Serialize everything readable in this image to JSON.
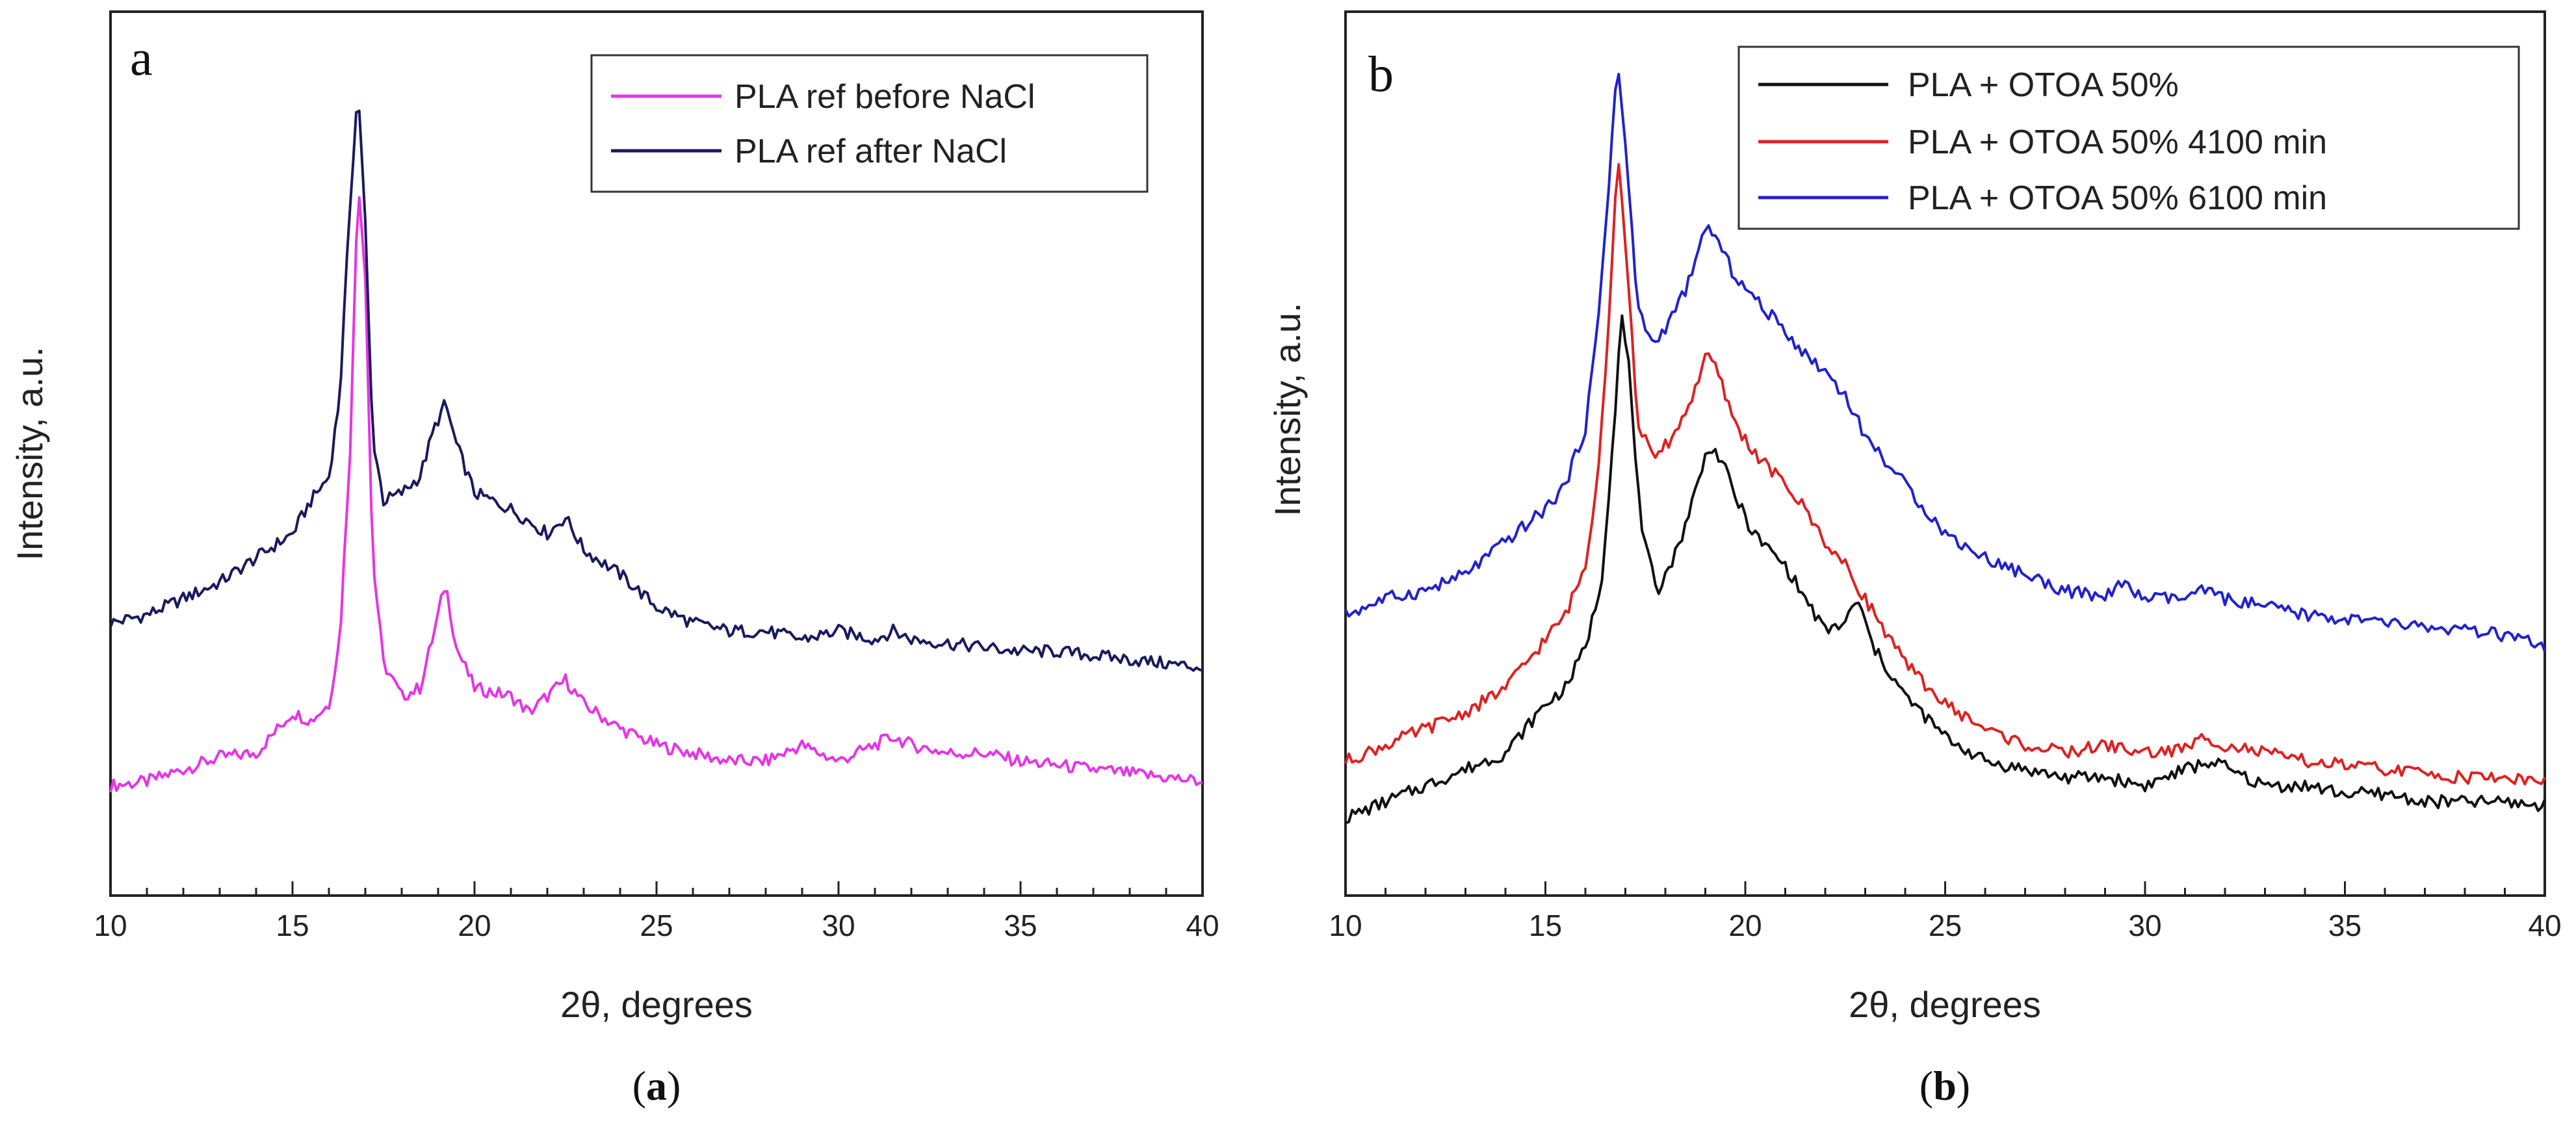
{
  "chart_data": [
    {
      "type": "line",
      "panel_letter": "a",
      "caption": {
        "open": "(",
        "letter": "a",
        "close": ")"
      },
      "xlabel": "2θ, degrees",
      "ylabel": "Intensity, a.u.",
      "xlim": [
        10,
        40
      ],
      "ylim": [
        0,
        100
      ],
      "x_ticks": [
        10,
        15,
        20,
        25,
        30,
        35,
        40
      ],
      "x_tick_labels": [
        "10",
        "15",
        "20",
        "25",
        "30",
        "35",
        "40"
      ],
      "legend_position": "top-right",
      "series": [
        {
          "name": "PLA ref before NaCl",
          "color": "#e535e5",
          "x": [
            10,
            11,
            12,
            13,
            14,
            15,
            15.5,
            16,
            16.3,
            16.6,
            16.8,
            17.0,
            17.2,
            17.5,
            18,
            18.5,
            18.9,
            19.2,
            19.5,
            20,
            21,
            21.5,
            22,
            22.5,
            23,
            24,
            25,
            26,
            27,
            28,
            29,
            29.2,
            30,
            31,
            31.5,
            32,
            33,
            34,
            35,
            36,
            37,
            38,
            39,
            40
          ],
          "values": [
            7,
            7.5,
            9,
            10.5,
            11,
            16,
            15,
            17,
            25,
            50,
            82,
            70,
            35,
            22,
            18,
            19,
            26,
            32,
            24,
            19,
            18,
            16,
            18,
            20,
            17,
            14,
            12,
            11,
            10,
            10,
            12,
            11.5,
            10,
            12,
            13,
            12,
            11,
            11,
            10,
            9.5,
            9,
            8.5,
            8,
            7.5
          ]
        },
        {
          "name": "PLA ref after NaCl",
          "color": "#1a1a5e",
          "x": [
            10,
            11,
            12,
            13,
            14,
            15,
            15.5,
            16,
            16.3,
            16.6,
            16.8,
            17.0,
            17.2,
            17.5,
            18,
            18.5,
            18.9,
            19.2,
            19.5,
            20,
            21,
            22,
            22.5,
            23,
            24,
            25,
            26,
            27,
            28,
            29,
            30,
            31,
            31.5,
            32,
            33,
            34,
            35,
            36,
            37,
            38,
            39,
            40
          ],
          "values": [
            27,
            28,
            30,
            32,
            35,
            38,
            42,
            45,
            55,
            80,
            93,
            76,
            50,
            42,
            43,
            45,
            51,
            54,
            49,
            43,
            41,
            38,
            40,
            36,
            33,
            29,
            27,
            26,
            26,
            25,
            26,
            25,
            26,
            25,
            24.5,
            24,
            23.5,
            23.5,
            23,
            22.5,
            22,
            21.5
          ]
        }
      ]
    },
    {
      "type": "line",
      "panel_letter": "b",
      "caption": {
        "open": "(",
        "letter": "b",
        "close": ")"
      },
      "xlabel": "2θ, degrees",
      "ylabel": "Intensity, a.u.",
      "xlim": [
        10,
        40
      ],
      "ylim": [
        0,
        100
      ],
      "x_ticks": [
        10,
        15,
        20,
        25,
        30,
        35,
        40
      ],
      "x_tick_labels": [
        "10",
        "15",
        "20",
        "25",
        "30",
        "35",
        "40"
      ],
      "legend_position": "top-right",
      "series": [
        {
          "name": "PLA + OTOA 50%",
          "color": "#111111",
          "x": [
            10,
            11,
            12,
            13,
            14,
            15,
            15.5,
            16,
            16.4,
            16.7,
            16.9,
            17.1,
            17.4,
            17.8,
            18.3,
            18.8,
            19.1,
            19.4,
            19.8,
            20.2,
            21,
            21.5,
            22,
            22.5,
            22.8,
            23.2,
            24,
            25,
            26,
            27,
            28,
            29,
            30,
            31,
            31.7,
            32.5,
            33,
            34,
            35,
            36,
            37,
            38,
            39,
            40
          ],
          "values": [
            3,
            5,
            7,
            9,
            11,
            17,
            19,
            24,
            32,
            50,
            65,
            58,
            38,
            31,
            36,
            44,
            49,
            47,
            42,
            38,
            34,
            30,
            26,
            27,
            30,
            24,
            18,
            13,
            10,
            9,
            8,
            8,
            7,
            9,
            10,
            8,
            7,
            7,
            6,
            6,
            5,
            5,
            5,
            4.5
          ]
        },
        {
          "name": "PLA + OTOA 50% 4100 min",
          "color": "#dd2222",
          "x": [
            10,
            11,
            12,
            13,
            14,
            15,
            15.5,
            16,
            16.3,
            16.6,
            16.8,
            17.0,
            17.3,
            17.7,
            18.2,
            18.7,
            19.0,
            19.3,
            19.7,
            20.2,
            21,
            21.5,
            22,
            22.5,
            23,
            24,
            25,
            26,
            27,
            28,
            29,
            30,
            31,
            31.5,
            32,
            33,
            34,
            35,
            36,
            37,
            38,
            39,
            40
          ],
          "values": [
            10,
            12,
            14,
            16,
            19,
            25,
            28,
            34,
            45,
            65,
            85,
            74,
            52,
            47,
            50,
            55,
            60,
            58,
            52,
            48,
            44,
            41,
            37,
            34,
            30,
            22,
            17,
            14,
            12,
            11,
            12,
            11,
            11.5,
            13,
            12,
            11,
            10,
            9.5,
            9,
            8.5,
            8,
            8,
            7.5
          ]
        },
        {
          "name": "PLA + OTOA 50% 6100 min",
          "color": "#2222cc",
          "x": [
            10,
            11,
            12,
            13,
            14,
            15,
            15.5,
            16,
            16.3,
            16.6,
            16.8,
            17.0,
            17.3,
            17.7,
            18.2,
            18.7,
            19.0,
            19.3,
            19.7,
            20.2,
            21,
            21.5,
            22,
            22.5,
            23,
            24,
            25,
            26,
            27,
            28,
            29,
            29.3,
            30,
            31,
            31.5,
            32,
            33,
            34,
            35,
            36,
            37,
            38,
            39,
            40
          ],
          "values": [
            28,
            30,
            31,
            33,
            37,
            41,
            44,
            51,
            63,
            82,
            96,
            86,
            66,
            61,
            65,
            70,
            76,
            74,
            70,
            67,
            63,
            60,
            58,
            55,
            50,
            44,
            38,
            35,
            33,
            31,
            30,
            32,
            30,
            30,
            31,
            30,
            29,
            28,
            27.5,
            27,
            26.5,
            26,
            25.5,
            24
          ]
        }
      ]
    }
  ]
}
